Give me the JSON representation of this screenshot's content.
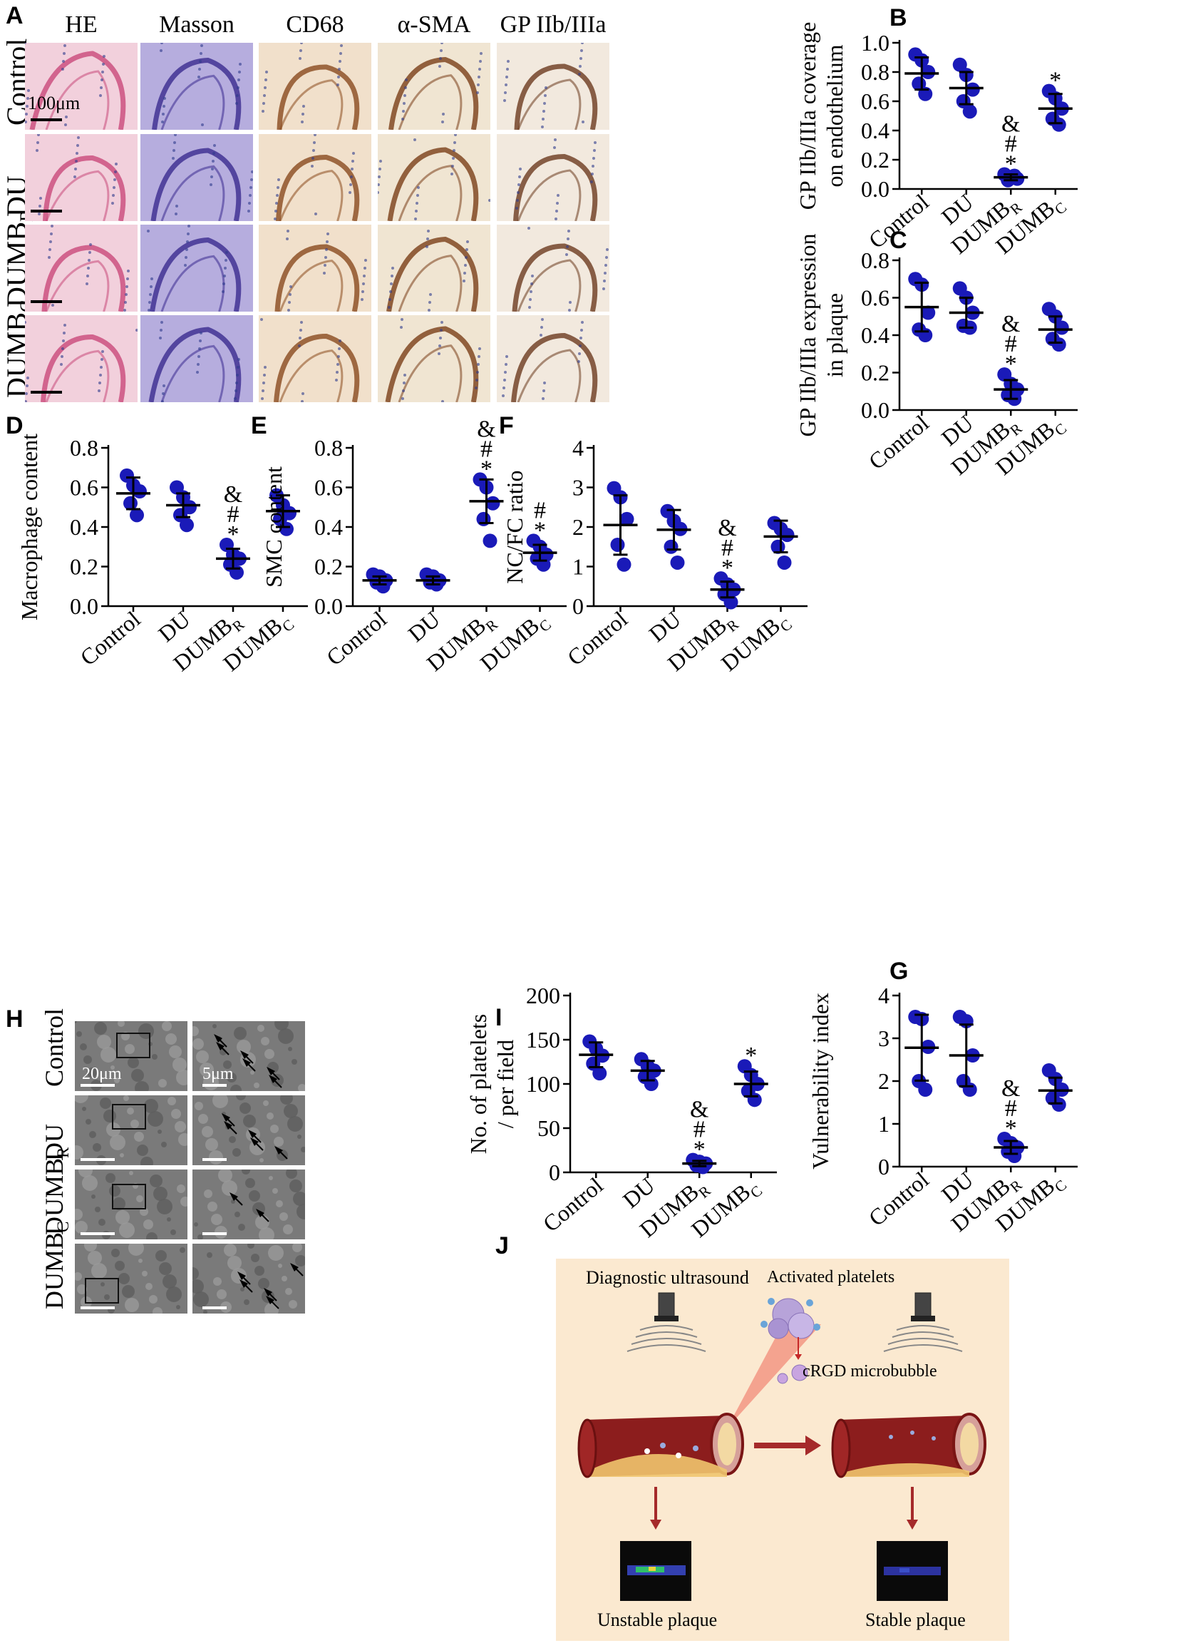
{
  "panel_A": {
    "letter": "A",
    "columns": [
      "HE",
      "Masson",
      "CD68",
      "α-SMA",
      "GP IIb/IIIa"
    ],
    "rows": [
      {
        "main": "Control",
        "sub": ""
      },
      {
        "main": "DU",
        "sub": ""
      },
      {
        "main": "DUMB",
        "sub": "R"
      },
      {
        "main": "DUMB",
        "sub": "C"
      }
    ],
    "scale_label": "100μm",
    "stain_colors": {
      "HE": "#e8a9c0",
      "Masson": "#7b6bc4",
      "CD68": "#e6c7a1",
      "α-SMA": "#e4cfae",
      "GP IIb/IIIa": "#e7d8c4"
    }
  },
  "panel_H": {
    "letter": "H",
    "rows": [
      {
        "main": "Control",
        "sub": ""
      },
      {
        "main": "DU",
        "sub": ""
      },
      {
        "main": "DUMB",
        "sub": "R"
      },
      {
        "main": "DUMB",
        "sub": "C"
      }
    ],
    "scale_left": "20μm",
    "scale_right": "5μm"
  },
  "panel_J": {
    "letter": "J",
    "diagnostic_ultrasound": "Diagnostic ultrasound",
    "activated_platelets": "Activated platelets",
    "microbubble": "cRGD microbubble",
    "unstable": "Unstable plaque",
    "stable": "Stable plaque"
  },
  "sig": {
    "star": "*",
    "hash": "#",
    "amp": "&"
  },
  "chart_data": [
    {
      "id": "B",
      "letter": "B",
      "type": "scatter",
      "ylabel_lines": [
        "GP IIb/IIIa coverage",
        "on endothelium"
      ],
      "ylim": [
        0,
        1.0
      ],
      "yticks": [
        "0.0",
        "0.2",
        "0.4",
        "0.6",
        "0.8",
        "1.0"
      ],
      "categories": [
        {
          "main": "Control",
          "sub": ""
        },
        {
          "main": "DU",
          "sub": ""
        },
        {
          "main": "DUMB",
          "sub": "R"
        },
        {
          "main": "DUMB",
          "sub": "C"
        }
      ],
      "points": [
        [
          0.92,
          0.88,
          0.8,
          0.72,
          0.65
        ],
        [
          0.85,
          0.78,
          0.68,
          0.6,
          0.53
        ],
        [
          0.1,
          0.08,
          0.07,
          0.06,
          0.09
        ],
        [
          0.67,
          0.62,
          0.55,
          0.48,
          0.44
        ]
      ],
      "mean": [
        0.79,
        0.69,
        0.08,
        0.55
      ],
      "sd": [
        0.11,
        0.11,
        0.02,
        0.1
      ],
      "marks": [
        [],
        [],
        [
          "&",
          "#",
          "*"
        ],
        [
          "*"
        ]
      ]
    },
    {
      "id": "C",
      "letter": "C",
      "type": "scatter",
      "ylabel_lines": [
        "GP IIb/IIIa expression",
        "in plaque"
      ],
      "ylim": [
        0,
        0.8
      ],
      "yticks": [
        "0.0",
        "0.2",
        "0.4",
        "0.6",
        "0.8"
      ],
      "categories": [
        {
          "main": "Control",
          "sub": ""
        },
        {
          "main": "DU",
          "sub": ""
        },
        {
          "main": "DUMB",
          "sub": "R"
        },
        {
          "main": "DUMB",
          "sub": "C"
        }
      ],
      "points": [
        [
          0.7,
          0.67,
          0.52,
          0.43,
          0.4
        ],
        [
          0.65,
          0.6,
          0.52,
          0.45,
          0.44
        ],
        [
          0.19,
          0.14,
          0.11,
          0.08,
          0.06
        ],
        [
          0.54,
          0.5,
          0.44,
          0.38,
          0.35
        ]
      ],
      "mean": [
        0.55,
        0.52,
        0.11,
        0.43
      ],
      "sd": [
        0.13,
        0.08,
        0.05,
        0.07
      ],
      "marks": [
        [],
        [],
        [
          "&",
          "#",
          "*"
        ],
        []
      ]
    },
    {
      "id": "D",
      "letter": "D",
      "type": "scatter",
      "ylabel_lines": [
        "Macrophage content"
      ],
      "ylim": [
        0,
        0.8
      ],
      "yticks": [
        "0.0",
        "0.2",
        "0.4",
        "0.6",
        "0.8"
      ],
      "categories": [
        {
          "main": "Control",
          "sub": ""
        },
        {
          "main": "DU",
          "sub": ""
        },
        {
          "main": "DUMB",
          "sub": "R"
        },
        {
          "main": "DUMB",
          "sub": "C"
        }
      ],
      "points": [
        [
          0.66,
          0.61,
          0.58,
          0.52,
          0.46
        ],
        [
          0.6,
          0.55,
          0.5,
          0.46,
          0.41
        ],
        [
          0.31,
          0.26,
          0.24,
          0.21,
          0.17
        ],
        [
          0.56,
          0.51,
          0.47,
          0.44,
          0.39
        ]
      ],
      "mean": [
        0.57,
        0.51,
        0.24,
        0.48
      ],
      "sd": [
        0.08,
        0.06,
        0.05,
        0.08
      ],
      "marks": [
        [],
        [],
        [
          "&",
          "#",
          "*"
        ],
        []
      ]
    },
    {
      "id": "E",
      "letter": "E",
      "type": "scatter",
      "ylabel_lines": [
        "SMC content"
      ],
      "ylim": [
        0,
        0.8
      ],
      "yticks": [
        "0.0",
        "0.2",
        "0.4",
        "0.6",
        "0.8"
      ],
      "categories": [
        {
          "main": "Control",
          "sub": ""
        },
        {
          "main": "DU",
          "sub": ""
        },
        {
          "main": "DUMB",
          "sub": "R"
        },
        {
          "main": "DUMB",
          "sub": "C"
        }
      ],
      "points": [
        [
          0.16,
          0.15,
          0.13,
          0.12,
          0.1
        ],
        [
          0.16,
          0.15,
          0.13,
          0.12,
          0.11
        ],
        [
          0.64,
          0.6,
          0.52,
          0.44,
          0.33
        ],
        [
          0.33,
          0.3,
          0.26,
          0.24,
          0.21
        ]
      ],
      "mean": [
        0.13,
        0.13,
        0.53,
        0.27
      ],
      "sd": [
        0.02,
        0.02,
        0.11,
        0.04
      ],
      "marks": [
        [],
        [],
        [
          "&",
          "#",
          "*"
        ],
        [
          "#",
          "*"
        ]
      ]
    },
    {
      "id": "F",
      "letter": "F",
      "type": "scatter",
      "ylabel_lines": [
        "NC/FC ratio"
      ],
      "ylim": [
        0,
        4
      ],
      "yticks": [
        "0",
        "1",
        "2",
        "3",
        "4"
      ],
      "categories": [
        {
          "main": "Control",
          "sub": ""
        },
        {
          "main": "DU",
          "sub": ""
        },
        {
          "main": "DUMB",
          "sub": "R"
        },
        {
          "main": "DUMB",
          "sub": "C"
        }
      ],
      "points": [
        [
          2.98,
          2.75,
          2.2,
          1.55,
          1.05
        ],
        [
          2.4,
          2.15,
          1.95,
          1.5,
          1.1
        ],
        [
          0.7,
          0.55,
          0.42,
          0.3,
          0.1
        ],
        [
          2.1,
          1.95,
          1.8,
          1.5,
          1.1
        ]
      ],
      "mean": [
        2.05,
        1.93,
        0.42,
        1.76
      ],
      "sd": [
        0.75,
        0.5,
        0.2,
        0.4
      ],
      "marks": [
        [],
        [],
        [
          "&",
          "#",
          "*"
        ],
        []
      ]
    },
    {
      "id": "I",
      "letter": "I",
      "type": "scatter",
      "ylabel_lines": [
        "No. of platelets",
        "/ per field"
      ],
      "ylim": [
        0,
        200
      ],
      "yticks": [
        "0",
        "50",
        "100",
        "150",
        "200"
      ],
      "categories": [
        {
          "main": "Control",
          "sub": ""
        },
        {
          "main": "DU",
          "sub": ""
        },
        {
          "main": "DUMB",
          "sub": "R"
        },
        {
          "main": "DUMB",
          "sub": "C"
        }
      ],
      "points": [
        [
          148,
          140,
          132,
          123,
          112
        ],
        [
          128,
          120,
          115,
          108,
          100
        ],
        [
          14,
          12,
          10,
          8,
          6
        ],
        [
          120,
          110,
          100,
          92,
          82
        ]
      ],
      "mean": [
        133,
        115,
        10,
        100
      ],
      "sd": [
        14,
        11,
        3,
        14
      ],
      "marks": [
        [],
        [],
        [
          "&",
          "#",
          "*"
        ],
        [
          "*"
        ]
      ]
    },
    {
      "id": "G",
      "letter": "G",
      "type": "scatter",
      "ylabel_lines": [
        "Vulnerability index"
      ],
      "ylim": [
        0,
        4
      ],
      "yticks": [
        "0",
        "1",
        "2",
        "3",
        "4"
      ],
      "categories": [
        {
          "main": "Control",
          "sub": ""
        },
        {
          "main": "DU",
          "sub": ""
        },
        {
          "main": "DUMB",
          "sub": "R"
        },
        {
          "main": "DUMB",
          "sub": "C"
        }
      ],
      "points": [
        [
          3.5,
          3.45,
          2.8,
          2.0,
          1.8
        ],
        [
          3.5,
          3.4,
          2.6,
          2.0,
          1.8
        ],
        [
          0.65,
          0.55,
          0.45,
          0.35,
          0.25
        ],
        [
          2.25,
          2.05,
          1.8,
          1.6,
          1.45
        ]
      ],
      "mean": [
        2.78,
        2.6,
        0.45,
        1.78
      ],
      "sd": [
        0.77,
        0.72,
        0.15,
        0.3
      ],
      "marks": [
        [],
        [],
        [
          "&",
          "#",
          "*"
        ],
        []
      ]
    }
  ]
}
